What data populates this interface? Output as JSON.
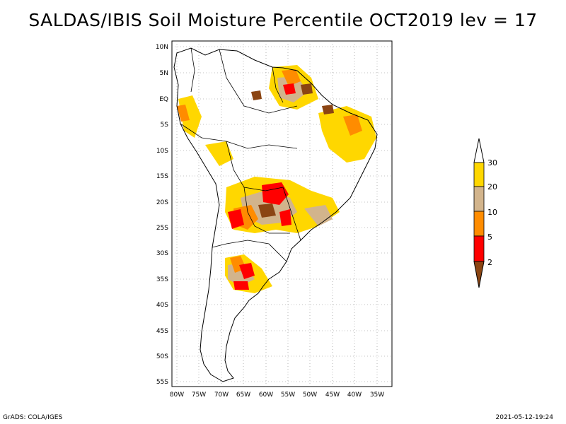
{
  "title": "SALDAS/IBIS Soil Moisture Percentile OCT2019 lev = 17",
  "footer": {
    "left": "GrADS: COLA/IGES",
    "right": "2021-05-12-19:24"
  },
  "map": {
    "region": "South America",
    "lon_range": [
      -81,
      -32
    ],
    "lat_range": [
      -56,
      12
    ],
    "lat_ticks": [
      "10N",
      "5N",
      "EQ",
      "5S",
      "10S",
      "15S",
      "20S",
      "25S",
      "30S",
      "35S",
      "40S",
      "45S",
      "50S",
      "55S"
    ],
    "lon_ticks": [
      "80W",
      "75W",
      "70W",
      "65W",
      "60W",
      "55W",
      "50W",
      "45W",
      "40W",
      "35W"
    ],
    "grid": "dotted"
  },
  "legend": {
    "labels": [
      "2",
      "5",
      "10",
      "20",
      "30"
    ],
    "colors": {
      "below_2": "#8b4513",
      "2_5": "#ff0000",
      "5_10": "#ff8c00",
      "10_20": "#d2b48c",
      "20_30": "#ffd700",
      "above_30": "#ffffff"
    }
  }
}
